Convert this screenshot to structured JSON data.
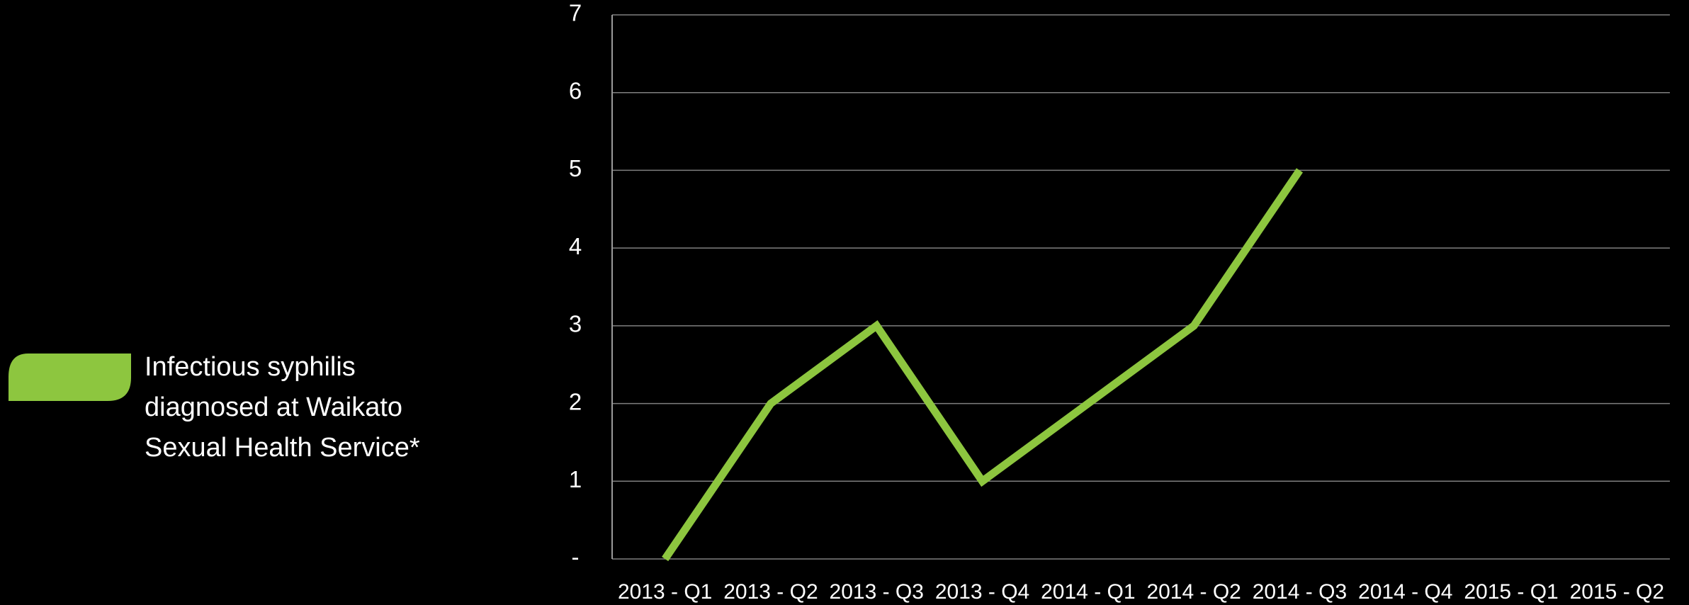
{
  "chart_data": {
    "type": "line",
    "categories": [
      "2013 - Q1",
      "2013 - Q2",
      "2013 - Q3",
      "2013 - Q4",
      "2014 - Q1",
      "2014 - Q2",
      "2014 - Q3",
      "2014 - Q4",
      "2015 - Q1",
      "2015 - Q2"
    ],
    "series": [
      {
        "name": "Infectious syphilis diagnosed at Waikato Sexual Health Service*",
        "color": "#8dc63f",
        "values": [
          0,
          2,
          3,
          1,
          2,
          3,
          5,
          null,
          null,
          null
        ]
      }
    ],
    "ylim": [
      0,
      7
    ],
    "yticks": [
      {
        "value": 0,
        "label": "-"
      },
      1,
      2,
      3,
      4,
      5,
      6,
      7
    ],
    "grid": true,
    "legend": "left"
  }
}
